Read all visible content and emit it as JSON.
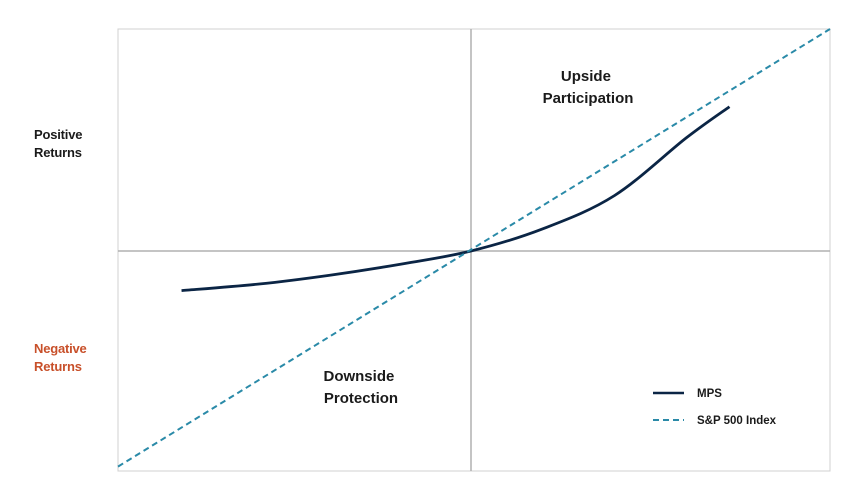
{
  "chart_data": {
    "type": "line",
    "title": "",
    "xlabel": "",
    "ylabel": "",
    "grid": false,
    "legend_position": "bottom-right",
    "axis_labels": {
      "positive": [
        "Positive",
        "Returns"
      ],
      "negative": [
        "Negative",
        "Returns"
      ]
    },
    "annotations": {
      "upside": [
        "Upside",
        "Participation"
      ],
      "downside": [
        "Downside",
        "Protection"
      ]
    },
    "xlim": [
      -1,
      1
    ],
    "ylim": [
      -1,
      1
    ],
    "series": [
      {
        "name": "MPS",
        "style": "solid",
        "color": "#0b2545",
        "x": [
          -0.82,
          -0.6,
          -0.4,
          -0.2,
          0.0,
          0.2,
          0.4,
          0.6,
          0.72
        ],
        "y": [
          -0.18,
          -0.15,
          -0.11,
          -0.06,
          0.0,
          0.1,
          0.25,
          0.51,
          0.65
        ]
      },
      {
        "name": "S&P 500 Index",
        "style": "dashed",
        "color": "#2a8aa8",
        "x": [
          -1,
          1
        ],
        "y": [
          -0.98,
          1.0
        ]
      }
    ],
    "colors": {
      "negative_label": "#c8502a",
      "axis_lines": "#b0b0b0",
      "frame": "#d0d0d0"
    }
  }
}
